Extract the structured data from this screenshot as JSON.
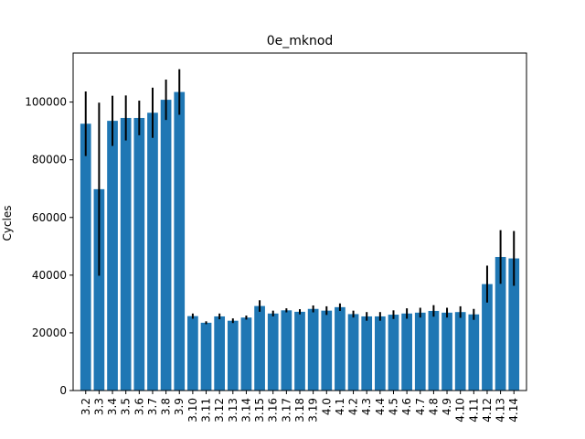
{
  "chart_data": {
    "type": "bar",
    "title": "0e_mknod",
    "xlabel": "",
    "ylabel": "Cycles",
    "ylim": [
      0,
      117000
    ],
    "yticks": [
      0,
      20000,
      40000,
      60000,
      80000,
      100000
    ],
    "ytick_labels": [
      "0",
      "20000",
      "40000",
      "60000",
      "80000",
      "100000"
    ],
    "grid": false,
    "colors": {
      "bar": "#1f77b4",
      "error": "#000000"
    },
    "categories": [
      "3.2",
      "3.3",
      "3.4",
      "3.5",
      "3.6",
      "3.7",
      "3.8",
      "3.9",
      "3.10",
      "3.11",
      "3.12",
      "3.13",
      "3.14",
      "3.15",
      "3.16",
      "3.17",
      "3.18",
      "3.19",
      "4.0",
      "4.1",
      "4.2",
      "4.3",
      "4.4",
      "4.5",
      "4.6",
      "4.7",
      "4.8",
      "4.9",
      "4.10",
      "4.11",
      "4.12",
      "4.13",
      "4.14"
    ],
    "values": [
      92500,
      69800,
      93500,
      94500,
      94500,
      96300,
      100800,
      103500,
      25800,
      23500,
      25700,
      24200,
      25300,
      29300,
      26700,
      27800,
      27300,
      28300,
      27700,
      28900,
      26500,
      25700,
      25700,
      26300,
      26700,
      27000,
      27600,
      27000,
      27200,
      26400,
      36900,
      46300,
      45800
    ],
    "errors": [
      11200,
      30000,
      8700,
      7800,
      6000,
      8700,
      7000,
      7900,
      900,
      500,
      1000,
      800,
      700,
      2000,
      1000,
      700,
      900,
      1200,
      1500,
      1300,
      1200,
      1500,
      1500,
      1500,
      1800,
      1700,
      2000,
      1700,
      2000,
      1900,
      6400,
      9300,
      9500
    ]
  }
}
